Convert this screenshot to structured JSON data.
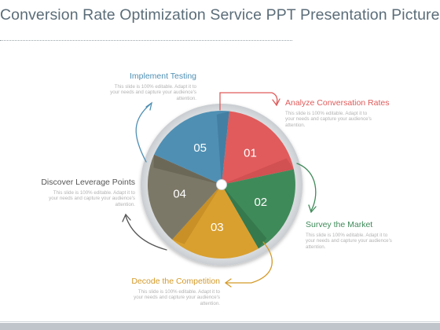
{
  "title": "Conversion Rate Optimization Service PPT Presentation Pictures",
  "segments": [
    {
      "number": "01",
      "heading": "Analyze Conversation Rates",
      "color": "#e15b5c",
      "dark": "#c44748"
    },
    {
      "number": "02",
      "heading": "Survey the Market",
      "color": "#3f8a59",
      "dark": "#2d6b43"
    },
    {
      "number": "03",
      "heading": "Decode the Competition",
      "color": "#d9a02f",
      "dark": "#b9841f"
    },
    {
      "number": "04",
      "heading": "Discover Leverage Points",
      "color": "#7c7867",
      "dark": "#5f5b4d"
    },
    {
      "number": "05",
      "heading": "Implement Testing",
      "color": "#4f8fb3",
      "dark": "#3a7396"
    }
  ],
  "body_lines": [
    "This slide is 100% editable. Adapt it to",
    "your needs and capture your audience's",
    "attention."
  ],
  "label_colors": {
    "implement": "#4f8fb3",
    "analyze": "#e05a5a",
    "survey": "#3f8a59",
    "decode": "#d49a28",
    "discover": "#555555"
  }
}
